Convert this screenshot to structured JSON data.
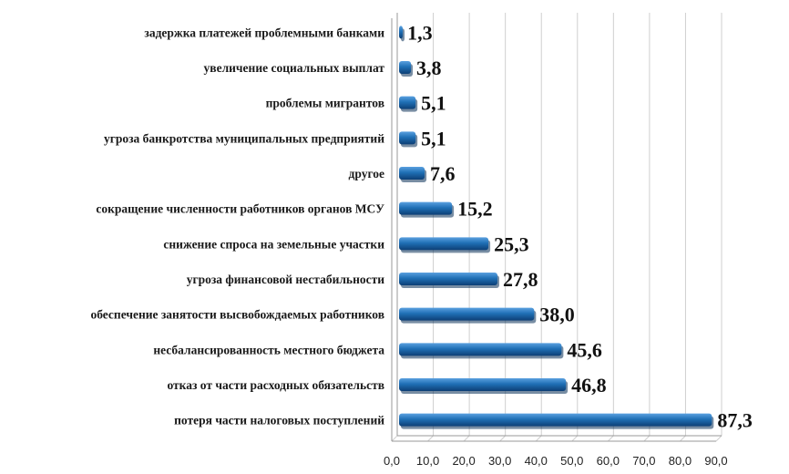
{
  "chart_data": {
    "type": "bar",
    "orientation": "horizontal",
    "title": "",
    "xlabel": "",
    "ylabel": "",
    "categories": [
      "задержка платежей проблемными банками",
      "увеличение социальных выплат",
      "проблемы мигрантов",
      "угроза банкротства муниципальных предприятий",
      "другое",
      "сокращение численности работников органов МСУ",
      "снижение спроса на земельные участки",
      "угроза финансовой нестабильности",
      "обеспечение занятости высвобождаемых работников",
      "несбалансированность местного бюджета",
      "отказ от части расходных обязательств",
      "потеря части налоговых поступлений"
    ],
    "values": [
      1.3,
      3.8,
      5.1,
      5.1,
      7.6,
      15.2,
      25.3,
      27.8,
      38.0,
      45.6,
      46.8,
      87.3
    ],
    "value_labels": [
      "1,3",
      "3,8",
      "5,1",
      "5,1",
      "7,6",
      "15,2",
      "25,3",
      "27,8",
      "38,0",
      "45,6",
      "46,8",
      "87,3"
    ],
    "xlim": [
      0,
      90
    ],
    "x_ticks": [
      "0,0",
      "10,0",
      "20,0",
      "30,0",
      "40,0",
      "50,0",
      "60,0",
      "70,0",
      "80,0",
      "90,0"
    ],
    "grid": true,
    "legend": "none",
    "bar_color": "#1f6fb5",
    "bar_color_dark": "#0d3f75",
    "bar_color_light": "#5aa0df"
  }
}
